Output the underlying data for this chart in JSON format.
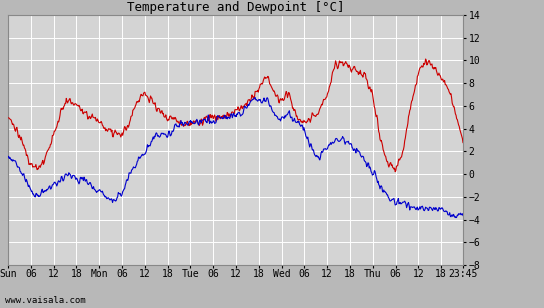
{
  "title": "Temperature and Dewpoint [°C]",
  "ylim": [
    -8,
    14
  ],
  "yticks": [
    -8,
    -6,
    -4,
    -2,
    0,
    2,
    4,
    6,
    8,
    10,
    12,
    14
  ],
  "watermark": "www.vaisala.com",
  "bg_color": "#d4d4d4",
  "grid_color": "#ffffff",
  "line_color_temp": "#cc0000",
  "line_color_dew": "#0000cc",
  "line_width": 0.8,
  "fig_bg_color": "#b8b8b8"
}
